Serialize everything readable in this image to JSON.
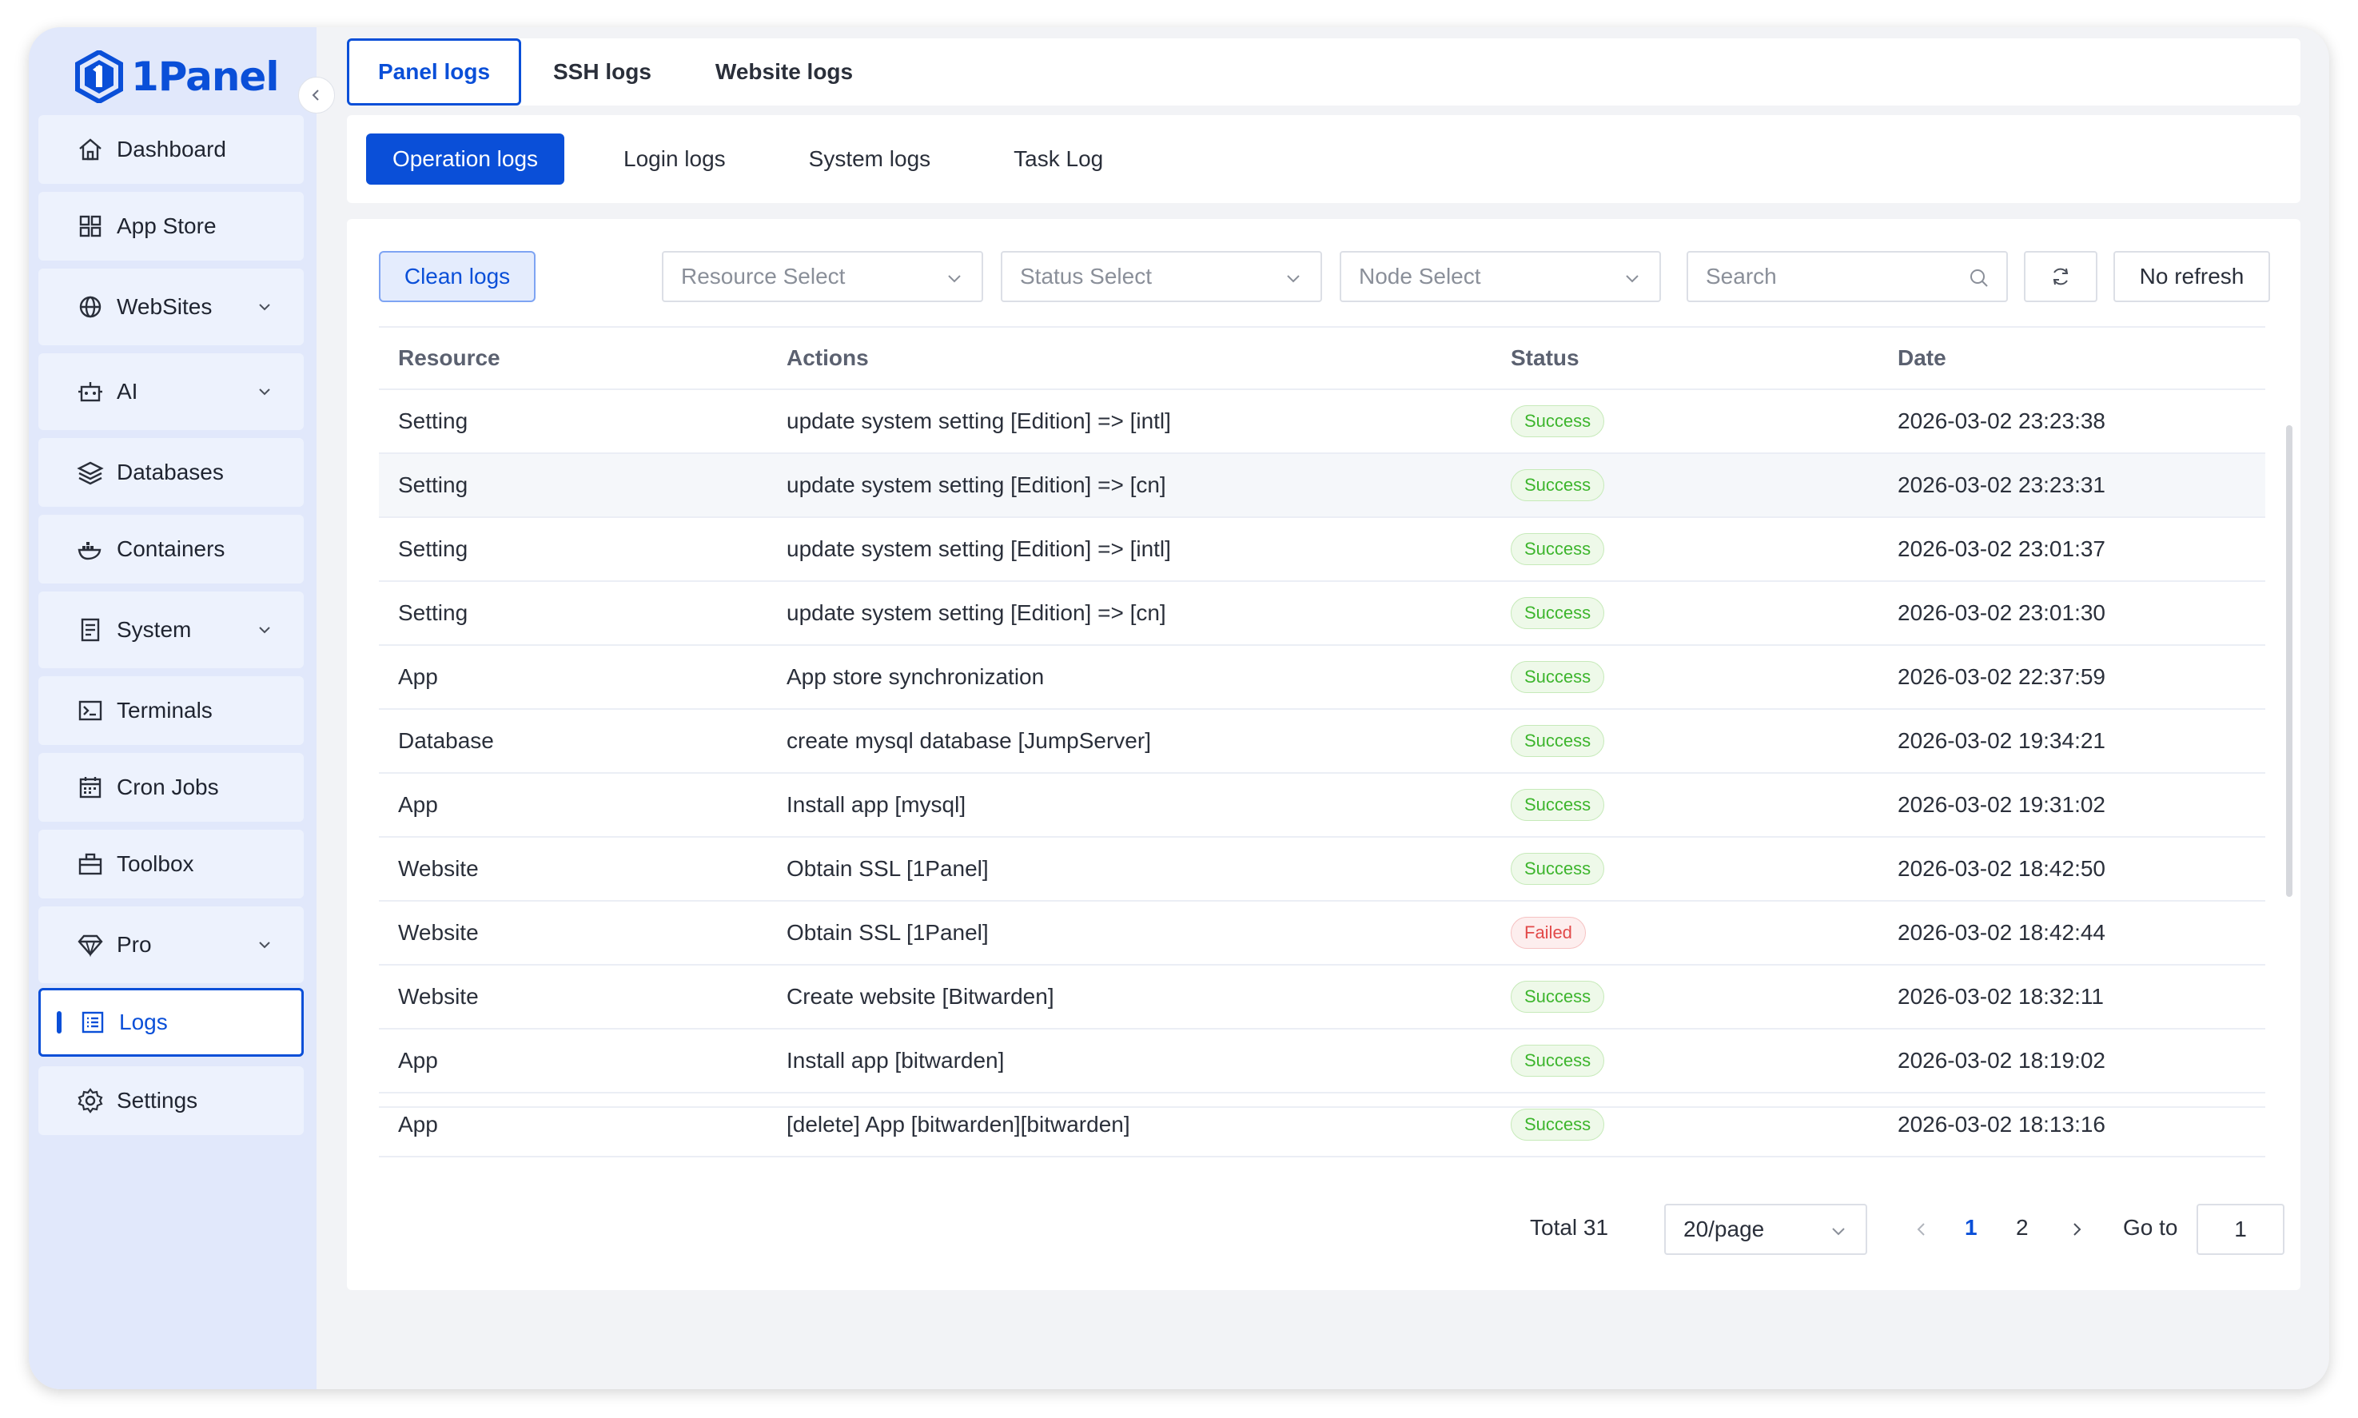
{
  "brand": {
    "name": "1Panel",
    "color": "#0a4fd8"
  },
  "sidebar": {
    "items": [
      {
        "label": "Dashboard",
        "icon": "home-icon",
        "expandable": false
      },
      {
        "label": "App Store",
        "icon": "grid-icon",
        "expandable": false
      },
      {
        "label": "WebSites",
        "icon": "globe-icon",
        "expandable": true
      },
      {
        "label": "AI",
        "icon": "robot-icon",
        "expandable": true
      },
      {
        "label": "Databases",
        "icon": "layers-icon",
        "expandable": false
      },
      {
        "label": "Containers",
        "icon": "docker-icon",
        "expandable": false
      },
      {
        "label": "System",
        "icon": "server-icon",
        "expandable": true
      },
      {
        "label": "Terminals",
        "icon": "terminal-icon",
        "expandable": false
      },
      {
        "label": "Cron Jobs",
        "icon": "calendar-icon",
        "expandable": false
      },
      {
        "label": "Toolbox",
        "icon": "toolbox-icon",
        "expandable": false
      },
      {
        "label": "Pro",
        "icon": "diamond-icon",
        "expandable": true
      },
      {
        "label": "Logs",
        "icon": "list-icon",
        "expandable": false,
        "active": true
      },
      {
        "label": "Settings",
        "icon": "gear-icon",
        "expandable": false
      }
    ]
  },
  "top_tabs": [
    "Panel logs",
    "SSH logs",
    "Website logs"
  ],
  "sub_tabs": [
    "Operation logs",
    "Login logs",
    "System logs",
    "Task Log"
  ],
  "toolbar": {
    "clean_label": "Clean logs",
    "resource_placeholder": "Resource Select",
    "status_placeholder": "Status Select",
    "node_placeholder": "Node Select",
    "search_placeholder": "Search",
    "no_refresh_label": "No refresh"
  },
  "table": {
    "headers": [
      "Resource",
      "Actions",
      "Status",
      "Date"
    ],
    "rows": [
      {
        "resource": "Setting",
        "action": "update system setting [Edition] => [intl]",
        "status": "Success",
        "date": "2026-03-02 23:23:38"
      },
      {
        "resource": "Setting",
        "action": "update system setting [Edition] => [cn]",
        "status": "Success",
        "date": "2026-03-02 23:23:31"
      },
      {
        "resource": "Setting",
        "action": "update system setting [Edition] => [intl]",
        "status": "Success",
        "date": "2026-03-02 23:01:37"
      },
      {
        "resource": "Setting",
        "action": "update system setting [Edition] => [cn]",
        "status": "Success",
        "date": "2026-03-02 23:01:30"
      },
      {
        "resource": "App",
        "action": "App store synchronization",
        "status": "Success",
        "date": "2026-03-02 22:37:59"
      },
      {
        "resource": "Database",
        "action": "create mysql database [JumpServer]",
        "status": "Success",
        "date": "2026-03-02 19:34:21"
      },
      {
        "resource": "App",
        "action": "Install app [mysql]",
        "status": "Success",
        "date": "2026-03-02 19:31:02"
      },
      {
        "resource": "Website",
        "action": "Obtain SSL [1Panel]",
        "status": "Success",
        "date": "2026-03-02 18:42:50"
      },
      {
        "resource": "Website",
        "action": "Obtain SSL [1Panel]",
        "status": "Failed",
        "date": "2026-03-02 18:42:44"
      },
      {
        "resource": "Website",
        "action": "Create website [Bitwarden]",
        "status": "Success",
        "date": "2026-03-02 18:32:11"
      },
      {
        "resource": "App",
        "action": "Install app [bitwarden]",
        "status": "Success",
        "date": "2026-03-02 18:19:02"
      },
      {
        "resource": "App",
        "action": "[delete] App [bitwarden][bitwarden]",
        "status": "Success",
        "date": "2026-03-02 18:13:16"
      }
    ]
  },
  "pagination": {
    "total": "Total 31",
    "page_size": "20/page",
    "pages": [
      "1",
      "2"
    ],
    "current_page": "1",
    "goto_label": "Go to",
    "goto_value": "1"
  },
  "colors": {
    "accent": "#0a4fd8",
    "success": "#3db52d",
    "failed": "#e24a4a",
    "sidebar_bg": "#e1e8fb"
  }
}
